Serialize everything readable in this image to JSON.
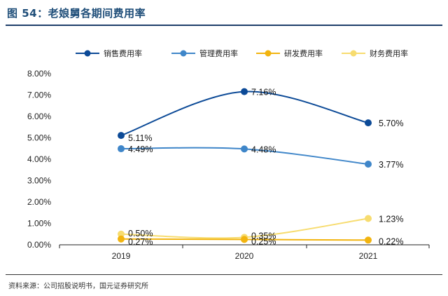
{
  "header": {
    "title": "图 54：老娘舅各期间费用率"
  },
  "footer": {
    "source": "资料来源：公司招股说明书，国元证券研究所"
  },
  "chart_data": {
    "type": "line",
    "title": "",
    "xlabel": "",
    "ylabel": "",
    "x": [
      "2019",
      "2020",
      "2021"
    ],
    "ylim": [
      0,
      8
    ],
    "yticks": [
      "0.00%",
      "1.00%",
      "2.00%",
      "3.00%",
      "4.00%",
      "5.00%",
      "6.00%",
      "7.00%",
      "8.00%"
    ],
    "grid": false,
    "smooth": true,
    "legend_position": "top",
    "series": [
      {
        "name": "销售费用率",
        "color": "#0c4a97",
        "values": [
          5.11,
          7.16,
          5.7
        ],
        "labels": [
          "5.11%",
          "7.16%",
          "5.70%"
        ]
      },
      {
        "name": "管理费用率",
        "color": "#3f86c9",
        "values": [
          4.49,
          4.48,
          3.77
        ],
        "labels": [
          "4.49%",
          "4.48%",
          "3.77%"
        ]
      },
      {
        "name": "研发费用率",
        "color": "#f2b40f",
        "values": [
          0.27,
          0.25,
          0.22
        ],
        "labels": [
          "0.27%",
          "0.25%",
          "0.22%"
        ]
      },
      {
        "name": "财务费用率",
        "color": "#f7dc6f",
        "values": [
          0.5,
          0.35,
          1.23
        ],
        "labels": [
          "0.50%",
          "0.35%",
          "1.23%"
        ]
      }
    ]
  }
}
